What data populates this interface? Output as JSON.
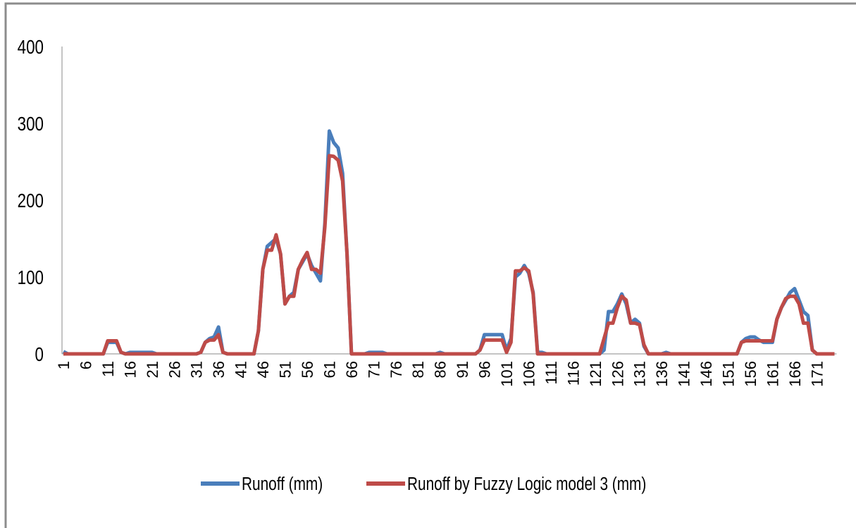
{
  "chart_data": {
    "type": "line",
    "categories": [
      1,
      null,
      null,
      null,
      null,
      6,
      null,
      null,
      null,
      null,
      11,
      null,
      null,
      null,
      null,
      16,
      null,
      null,
      null,
      null,
      21,
      null,
      null,
      null,
      null,
      26,
      null,
      null,
      null,
      null,
      31,
      null,
      null,
      null,
      null,
      36,
      null,
      null,
      null,
      null,
      41,
      null,
      null,
      null,
      null,
      46,
      null,
      null,
      null,
      null,
      51,
      null,
      null,
      null,
      null,
      56,
      null,
      null,
      null,
      null,
      61,
      null,
      null,
      null,
      null,
      66,
      null,
      null,
      null,
      null,
      71,
      null,
      null,
      null,
      null,
      76,
      null,
      null,
      null,
      null,
      81,
      null,
      null,
      null,
      null,
      86,
      null,
      null,
      null,
      null,
      91,
      null,
      null,
      null,
      null,
      96,
      null,
      null,
      null,
      null,
      101,
      null,
      null,
      null,
      null,
      106,
      null,
      null,
      null,
      null,
      111,
      null,
      null,
      null,
      null,
      116,
      null,
      null,
      null,
      null,
      121,
      null,
      null,
      null,
      null,
      126,
      null,
      null,
      null,
      null,
      131,
      null,
      null,
      null,
      null,
      136,
      null,
      null,
      null,
      null,
      141,
      null,
      null,
      null,
      null,
      146,
      null,
      null,
      null,
      null,
      151,
      null,
      null,
      null,
      null,
      156,
      null,
      null,
      null,
      null,
      161,
      null,
      null,
      null,
      null,
      166,
      null,
      null,
      null,
      null,
      171,
      null,
      null,
      null,
      null
    ],
    "series": [
      {
        "name": "Runoff (mm)",
        "color": "#4a7ebb",
        "values": [
          3,
          0,
          0,
          0,
          0,
          0,
          0,
          0,
          0,
          0,
          15,
          15,
          15,
          2,
          0,
          2,
          2,
          2,
          2,
          2,
          2,
          0,
          0,
          0,
          0,
          0,
          0,
          0,
          0,
          0,
          0,
          2,
          15,
          20,
          22,
          35,
          2,
          0,
          0,
          0,
          0,
          0,
          0,
          0,
          30,
          110,
          140,
          145,
          150,
          130,
          65,
          75,
          80,
          110,
          120,
          130,
          115,
          105,
          95,
          170,
          290,
          275,
          268,
          235,
          130,
          0,
          0,
          0,
          0,
          2,
          2,
          2,
          2,
          0,
          0,
          0,
          0,
          0,
          0,
          0,
          0,
          0,
          0,
          0,
          0,
          2,
          0,
          0,
          0,
          0,
          0,
          0,
          0,
          0,
          5,
          25,
          25,
          25,
          25,
          25,
          5,
          20,
          100,
          105,
          115,
          105,
          80,
          2,
          2,
          0,
          0,
          0,
          0,
          0,
          0,
          0,
          0,
          0,
          0,
          0,
          0,
          0,
          5,
          55,
          55,
          65,
          78,
          65,
          40,
          45,
          40,
          10,
          0,
          0,
          0,
          0,
          2,
          0,
          0,
          0,
          0,
          0,
          0,
          0,
          0,
          0,
          0,
          0,
          0,
          0,
          0,
          0,
          0,
          15,
          20,
          22,
          22,
          18,
          15,
          15,
          15,
          45,
          60,
          70,
          80,
          85,
          70,
          55,
          50,
          5,
          0,
          0,
          0,
          0,
          0
        ]
      },
      {
        "name": "Runoff by Fuzzy Logic model 3 (mm)",
        "color": "#be4b48",
        "values": [
          0,
          0,
          0,
          0,
          0,
          0,
          0,
          0,
          0,
          0,
          17,
          17,
          17,
          2,
          0,
          0,
          0,
          0,
          0,
          0,
          0,
          0,
          0,
          0,
          0,
          0,
          0,
          0,
          0,
          0,
          0,
          2,
          15,
          18,
          18,
          25,
          2,
          0,
          0,
          0,
          0,
          0,
          0,
          0,
          30,
          110,
          135,
          135,
          155,
          130,
          65,
          75,
          75,
          110,
          122,
          132,
          110,
          110,
          105,
          165,
          258,
          257,
          252,
          225,
          130,
          0,
          0,
          0,
          0,
          0,
          0,
          0,
          0,
          0,
          0,
          0,
          0,
          0,
          0,
          0,
          0,
          0,
          0,
          0,
          0,
          0,
          0,
          0,
          0,
          0,
          0,
          0,
          0,
          0,
          5,
          18,
          18,
          18,
          18,
          18,
          2,
          15,
          108,
          108,
          112,
          108,
          78,
          0,
          0,
          0,
          0,
          0,
          0,
          0,
          0,
          0,
          0,
          0,
          0,
          0,
          0,
          0,
          20,
          40,
          40,
          60,
          75,
          70,
          40,
          40,
          38,
          12,
          0,
          0,
          0,
          0,
          0,
          0,
          0,
          0,
          0,
          0,
          0,
          0,
          0,
          0,
          0,
          0,
          0,
          0,
          0,
          0,
          0,
          15,
          17,
          17,
          17,
          17,
          17,
          17,
          17,
          45,
          60,
          72,
          75,
          75,
          65,
          40,
          40,
          5,
          0,
          0,
          0,
          0,
          0
        ]
      }
    ],
    "ylim": [
      0,
      400
    ],
    "yticks": [
      0,
      100,
      200,
      300,
      400
    ],
    "grid": false,
    "legend": "bottom"
  }
}
